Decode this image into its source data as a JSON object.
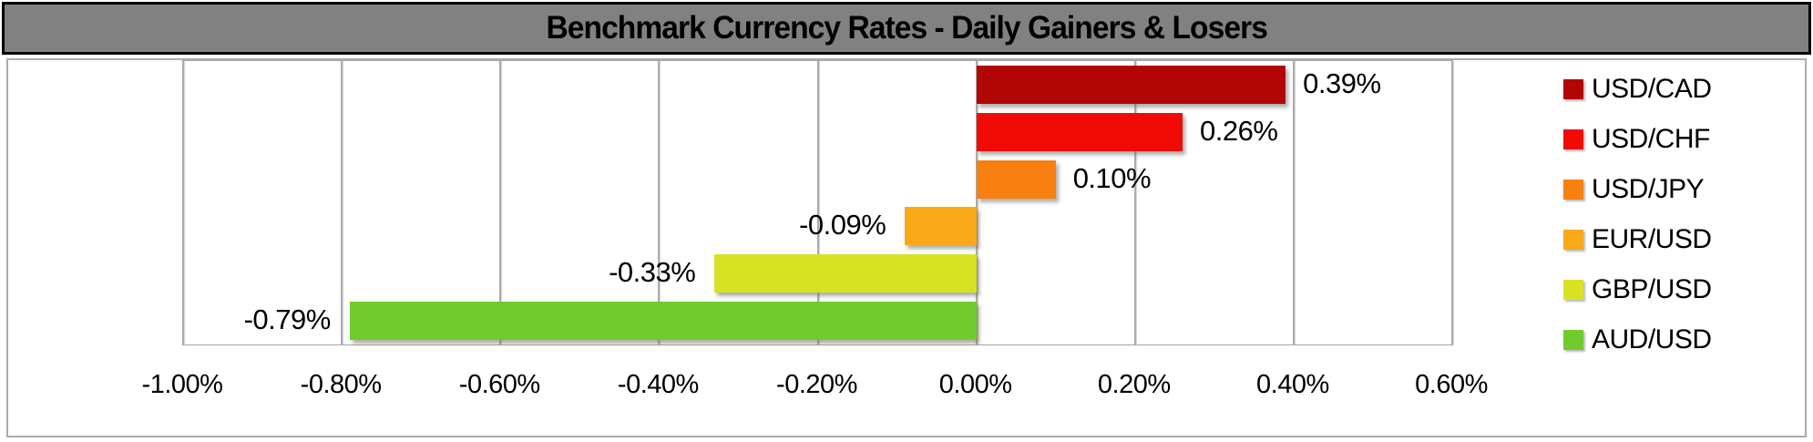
{
  "title": "Benchmark Currency Rates - Daily Gainers & Losers",
  "chart_data": {
    "type": "bar",
    "orientation": "horizontal",
    "title": "Benchmark Currency Rates - Daily Gainers & Losers",
    "categories": [
      "USD/CAD",
      "USD/CHF",
      "USD/JPY",
      "EUR/USD",
      "GBP/USD",
      "AUD/USD"
    ],
    "values": [
      0.39,
      0.26,
      0.1,
      -0.09,
      -0.33,
      -0.79
    ],
    "value_labels": [
      "0.39%",
      "0.26%",
      "0.10%",
      "-0.09%",
      "-0.33%",
      "-0.79%"
    ],
    "bar_colors": [
      "#B20505",
      "#F00C05",
      "#F88010",
      "#FAA91A",
      "#D8E225",
      "#72CB2E"
    ],
    "xlim": [
      -1.0,
      0.6
    ],
    "x_tick_values": [
      -1.0,
      -0.8,
      -0.6,
      -0.4,
      -0.2,
      0.0,
      0.2,
      0.4,
      0.6
    ],
    "x_tick_labels": [
      "-1.00%",
      "-0.80%",
      "-0.60%",
      "-0.40%",
      "-0.20%",
      "0.00%",
      "0.20%",
      "0.40%",
      "0.60%"
    ],
    "grid": true,
    "legend_position": "right",
    "data_label_position": "outside-end"
  },
  "style_colors": {
    "title_bar_bg": "#818181",
    "title_bar_border": "#000000",
    "frame_border": "#ABABAB",
    "gridline": "#ABABAB",
    "label_text": "#000000"
  }
}
